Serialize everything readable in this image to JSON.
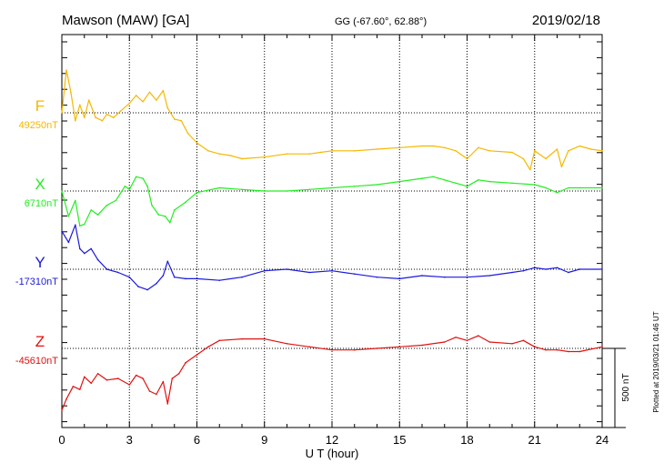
{
  "header": {
    "title": "Mawson (MAW)  [GA]",
    "coords": "GG (-67.60°,  62.88°)",
    "date": "2019/02/18"
  },
  "side_note": "Plotted at 2019/03/21 01:46 UT",
  "scale_bar": {
    "label": "500 nT",
    "value_nT": 500
  },
  "chart_data": {
    "type": "line",
    "xlabel": "U T (hour)",
    "xlim": [
      0,
      24
    ],
    "xticks": [
      "0",
      "3",
      "6",
      "9",
      "12",
      "15",
      "18",
      "21",
      "24"
    ],
    "grid": true,
    "series": [
      {
        "name": "F",
        "baseline_label": "49250nT",
        "baseline": 49250,
        "color": "#f5b800",
        "x": [
          0,
          0.2,
          0.4,
          0.6,
          0.8,
          1,
          1.2,
          1.5,
          1.8,
          2,
          2.3,
          2.6,
          3,
          3.3,
          3.6,
          3.9,
          4.2,
          4.5,
          4.7,
          5,
          5.3,
          5.6,
          6,
          6.5,
          7,
          7.5,
          8,
          9,
          10,
          11,
          11.5,
          12,
          13,
          14,
          15,
          16,
          16.5,
          17,
          17.5,
          18,
          18.5,
          19,
          20,
          20.5,
          20.8,
          21,
          21.5,
          22,
          22.2,
          22.5,
          23,
          23.5,
          24
        ],
        "values": [
          49250,
          49520,
          49380,
          49200,
          49300,
          49220,
          49330,
          49220,
          49200,
          49240,
          49220,
          49260,
          49310,
          49360,
          49320,
          49380,
          49330,
          49390,
          49280,
          49210,
          49200,
          49120,
          49060,
          49010,
          48990,
          48980,
          48960,
          48970,
          48990,
          48990,
          49000,
          49010,
          49010,
          49020,
          49030,
          49040,
          49040,
          49030,
          49010,
          48960,
          49030,
          49010,
          49000,
          48960,
          48890,
          49010,
          48960,
          49020,
          48910,
          49010,
          49040,
          49020,
          49010
        ]
      },
      {
        "name": "X",
        "baseline_label": "6710nT",
        "baseline": 6710,
        "color": "#22ee22",
        "x": [
          0,
          0.3,
          0.6,
          0.8,
          1,
          1.3,
          1.6,
          2,
          2.4,
          2.8,
          3,
          3.3,
          3.6,
          3.8,
          4,
          4.3,
          4.6,
          4.8,
          5,
          5.5,
          6,
          7,
          8,
          9,
          10,
          11,
          12,
          13,
          14,
          15,
          16,
          16.5,
          17,
          17.5,
          18,
          18.5,
          19,
          20,
          21,
          21.5,
          22,
          22.5,
          23,
          24
        ],
        "values": [
          6710,
          6550,
          6650,
          6490,
          6500,
          6590,
          6560,
          6620,
          6650,
          6740,
          6720,
          6800,
          6790,
          6740,
          6620,
          6560,
          6550,
          6510,
          6590,
          6640,
          6700,
          6730,
          6720,
          6710,
          6710,
          6720,
          6730,
          6740,
          6750,
          6770,
          6790,
          6800,
          6780,
          6760,
          6740,
          6780,
          6770,
          6760,
          6750,
          6730,
          6700,
          6730,
          6730,
          6730
        ]
      },
      {
        "name": "Y",
        "baseline_label": "-17310nT",
        "baseline": -17310,
        "color": "#1a1add",
        "x": [
          0,
          0.3,
          0.6,
          0.8,
          1,
          1.3,
          1.6,
          2,
          2.5,
          3,
          3.4,
          3.8,
          4.2,
          4.5,
          4.7,
          5,
          5.5,
          6,
          7,
          8,
          9,
          10,
          11,
          12,
          13,
          14,
          15,
          16,
          17,
          18,
          19,
          20,
          20.5,
          21,
          21.5,
          22,
          22.5,
          23,
          24
        ],
        "values": [
          -17070,
          -17140,
          -17030,
          -17180,
          -17210,
          -17180,
          -17250,
          -17310,
          -17330,
          -17360,
          -17420,
          -17440,
          -17400,
          -17350,
          -17260,
          -17360,
          -17370,
          -17370,
          -17380,
          -17360,
          -17320,
          -17310,
          -17330,
          -17320,
          -17340,
          -17360,
          -17370,
          -17350,
          -17360,
          -17360,
          -17350,
          -17330,
          -17320,
          -17300,
          -17310,
          -17300,
          -17330,
          -17310,
          -17310
        ]
      },
      {
        "name": "Z",
        "baseline_label": "-45610nT",
        "baseline": -45610,
        "color": "#e21010",
        "x": [
          0,
          0.2,
          0.5,
          0.8,
          1,
          1.3,
          1.6,
          2,
          2.5,
          3,
          3.3,
          3.6,
          3.9,
          4.2,
          4.5,
          4.7,
          4.9,
          5.2,
          5.5,
          6,
          6.5,
          7,
          8,
          9,
          10,
          11,
          12,
          13,
          14,
          15,
          16,
          17,
          17.5,
          18,
          18.5,
          19,
          20,
          20.5,
          21,
          21.5,
          22,
          22.5,
          23,
          24
        ],
        "values": [
          -46000,
          -45930,
          -45850,
          -45870,
          -45790,
          -45830,
          -45770,
          -45810,
          -45800,
          -45840,
          -45780,
          -45800,
          -45880,
          -45900,
          -45820,
          -45960,
          -45800,
          -45770,
          -45700,
          -45650,
          -45600,
          -45560,
          -45550,
          -45550,
          -45580,
          -45600,
          -45620,
          -45620,
          -45610,
          -45600,
          -45590,
          -45570,
          -45540,
          -45560,
          -45530,
          -45570,
          -45580,
          -45560,
          -45600,
          -45620,
          -45620,
          -45630,
          -45630,
          -45600
        ]
      }
    ]
  }
}
